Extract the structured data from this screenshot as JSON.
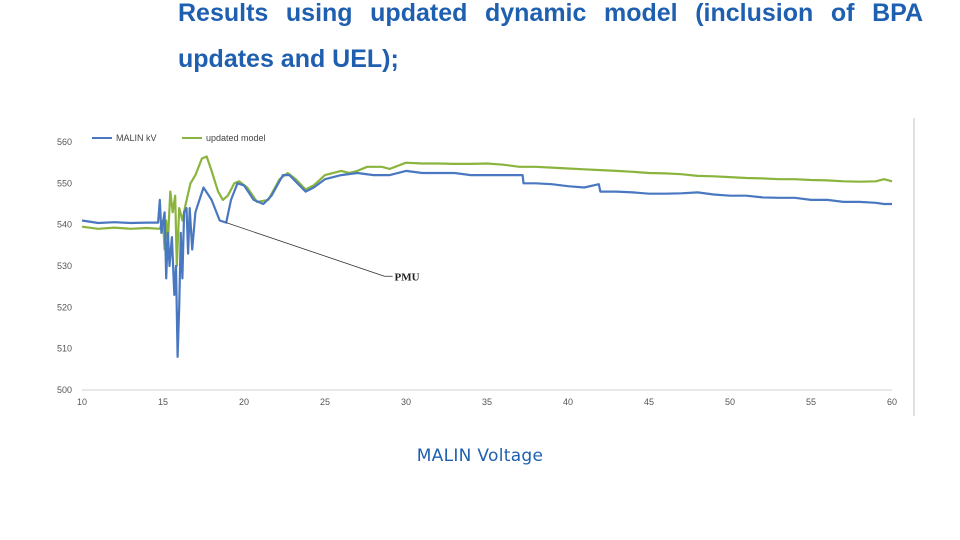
{
  "slide": {
    "title": "Results using updated dynamic model (inclusion of BPA updates and UEL);",
    "caption": "MALIN  Voltage"
  },
  "chart_data": {
    "type": "line",
    "xlim": [
      10,
      60
    ],
    "ylim": [
      500,
      560
    ],
    "xticks": [
      10,
      15,
      20,
      25,
      30,
      35,
      40,
      45,
      50,
      55,
      60
    ],
    "yticks": [
      500,
      510,
      520,
      530,
      540,
      550,
      560
    ],
    "grid": false,
    "legend_position": "top-left",
    "annotation": {
      "text": "PMU",
      "point": [
        18.9,
        540.5
      ],
      "label_at": [
        28.8,
        528
      ]
    },
    "series": [
      {
        "name": "MALIN kV",
        "color": "#4a78c0",
        "points": [
          [
            10,
            541
          ],
          [
            11,
            540.4
          ],
          [
            12,
            540.6
          ],
          [
            13,
            540.4
          ],
          [
            14,
            540.5
          ],
          [
            14.7,
            540.5
          ],
          [
            14.8,
            546
          ],
          [
            14.9,
            538
          ],
          [
            15.1,
            543
          ],
          [
            15.2,
            527
          ],
          [
            15.3,
            538
          ],
          [
            15.4,
            530
          ],
          [
            15.55,
            537
          ],
          [
            15.7,
            523
          ],
          [
            15.8,
            530
          ],
          [
            15.9,
            508
          ],
          [
            16.0,
            520
          ],
          [
            16.1,
            538
          ],
          [
            16.2,
            527
          ],
          [
            16.3,
            543
          ],
          [
            16.45,
            544
          ],
          [
            16.55,
            533
          ],
          [
            16.65,
            544
          ],
          [
            16.8,
            534
          ],
          [
            17.0,
            543
          ],
          [
            17.5,
            549
          ],
          [
            18.0,
            546
          ],
          [
            18.5,
            541
          ],
          [
            18.9,
            540.5
          ],
          [
            19.2,
            546
          ],
          [
            19.6,
            550
          ],
          [
            20.0,
            549.5
          ],
          [
            20.6,
            546
          ],
          [
            21.2,
            545
          ],
          [
            21.7,
            547
          ],
          [
            22.4,
            552
          ],
          [
            22.8,
            552
          ],
          [
            23.3,
            550
          ],
          [
            23.8,
            548
          ],
          [
            24.3,
            549
          ],
          [
            25,
            551
          ],
          [
            26,
            552
          ],
          [
            27,
            552.5
          ],
          [
            28,
            552
          ],
          [
            29,
            552
          ],
          [
            30,
            553
          ],
          [
            31,
            552.5
          ],
          [
            32,
            552.5
          ],
          [
            33,
            552.5
          ],
          [
            34,
            552
          ],
          [
            35,
            552
          ],
          [
            36,
            552
          ],
          [
            37.2,
            552
          ],
          [
            37.25,
            550
          ],
          [
            38,
            550
          ],
          [
            39,
            549.8
          ],
          [
            40,
            549.3
          ],
          [
            41,
            549
          ],
          [
            41.9,
            549.8
          ],
          [
            42,
            548
          ],
          [
            43,
            548
          ],
          [
            44,
            547.8
          ],
          [
            45,
            547.5
          ],
          [
            46,
            547.5
          ],
          [
            47,
            547.6
          ],
          [
            48,
            547.8
          ],
          [
            49,
            547.3
          ],
          [
            50,
            547
          ],
          [
            51,
            547
          ],
          [
            52,
            546.6
          ],
          [
            53,
            546.5
          ],
          [
            54,
            546.5
          ],
          [
            55,
            546
          ],
          [
            56,
            546
          ],
          [
            57,
            545.5
          ],
          [
            58,
            545.5
          ],
          [
            59,
            545.3
          ],
          [
            59.5,
            545
          ],
          [
            60,
            545
          ]
        ]
      },
      {
        "name": "updated model",
        "color": "#8ab43e",
        "points": [
          [
            10,
            539.5
          ],
          [
            11,
            539
          ],
          [
            12,
            539.3
          ],
          [
            13,
            539
          ],
          [
            14,
            539.2
          ],
          [
            14.8,
            539
          ],
          [
            15.0,
            541
          ],
          [
            15.1,
            534
          ],
          [
            15.2,
            541
          ],
          [
            15.3,
            536
          ],
          [
            15.45,
            548
          ],
          [
            15.6,
            543
          ],
          [
            15.75,
            547
          ],
          [
            15.85,
            530
          ],
          [
            16.0,
            544
          ],
          [
            16.2,
            541
          ],
          [
            16.4,
            545
          ],
          [
            16.7,
            550
          ],
          [
            17.0,
            552
          ],
          [
            17.4,
            556
          ],
          [
            17.7,
            556.5
          ],
          [
            18.0,
            553
          ],
          [
            18.4,
            548
          ],
          [
            18.7,
            546
          ],
          [
            19.0,
            547
          ],
          [
            19.4,
            550
          ],
          [
            19.7,
            550.5
          ],
          [
            20.2,
            549
          ],
          [
            20.8,
            545.5
          ],
          [
            21.5,
            546
          ],
          [
            22.2,
            551
          ],
          [
            22.7,
            552.5
          ],
          [
            23.2,
            551
          ],
          [
            23.8,
            548.5
          ],
          [
            24.3,
            549.5
          ],
          [
            25,
            552
          ],
          [
            26,
            553
          ],
          [
            26.5,
            552.5
          ],
          [
            27,
            553
          ],
          [
            27.6,
            554
          ],
          [
            28.5,
            554
          ],
          [
            29,
            553.5
          ],
          [
            30,
            555
          ],
          [
            31,
            554.8
          ],
          [
            32,
            554.8
          ],
          [
            33,
            554.7
          ],
          [
            34,
            554.7
          ],
          [
            35,
            554.8
          ],
          [
            36,
            554.5
          ],
          [
            37,
            554
          ],
          [
            38,
            554
          ],
          [
            39,
            553.8
          ],
          [
            40,
            553.6
          ],
          [
            41,
            553.4
          ],
          [
            42,
            553.2
          ],
          [
            43,
            553
          ],
          [
            44,
            552.8
          ],
          [
            45,
            552.5
          ],
          [
            46,
            552.4
          ],
          [
            47,
            552.2
          ],
          [
            48,
            551.8
          ],
          [
            49,
            551.7
          ],
          [
            50,
            551.5
          ],
          [
            51,
            551.3
          ],
          [
            52,
            551.2
          ],
          [
            53,
            551
          ],
          [
            54,
            551
          ],
          [
            55,
            550.8
          ],
          [
            56,
            550.7
          ],
          [
            57,
            550.5
          ],
          [
            58,
            550.4
          ],
          [
            59,
            550.5
          ],
          [
            59.5,
            551
          ],
          [
            60,
            550.5
          ]
        ]
      }
    ]
  }
}
